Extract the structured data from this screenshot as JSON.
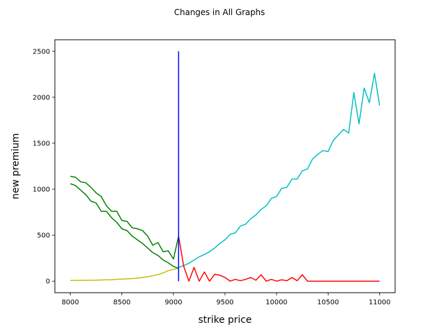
{
  "chart_data": {
    "type": "line",
    "title": "Changes in All Graphs",
    "xlabel": "strike price",
    "ylabel": "new premium",
    "xlim": [
      7850,
      11150
    ],
    "ylim": [
      -125,
      2625
    ],
    "xticks": [
      8000,
      8500,
      9000,
      9500,
      10000,
      10500,
      11000
    ],
    "yticks": [
      0,
      500,
      1000,
      1500,
      2000,
      2500
    ],
    "grid": false,
    "legend": "none",
    "series": [
      {
        "color": "#00bfbf",
        "x": [
          9050,
          9100,
          9150,
          9200,
          9250,
          9300,
          9350,
          9400,
          9450,
          9500,
          9550,
          9600,
          9650,
          9700,
          9750,
          9800,
          9850,
          9900,
          9950,
          10000,
          10050,
          10100,
          10150,
          10200,
          10250,
          10300,
          10350,
          10400,
          10450,
          10500,
          10550,
          10600,
          10650,
          10700,
          10750,
          10800,
          10850,
          10900,
          10950,
          11000
        ],
        "values": [
          150,
          170,
          195,
          230,
          265,
          290,
          320,
          360,
          410,
          450,
          510,
          525,
          600,
          620,
          680,
          720,
          780,
          820,
          900,
          920,
          1010,
          1020,
          1110,
          1110,
          1200,
          1220,
          1330,
          1380,
          1420,
          1410,
          1530,
          1590,
          1650,
          1610,
          2050,
          1710,
          2100,
          1940,
          2260,
          1910
        ]
      },
      {
        "color": "#bfbf00",
        "x": [
          8000,
          8050,
          8100,
          8150,
          8200,
          8250,
          8300,
          8350,
          8400,
          8450,
          8500,
          8550,
          8600,
          8650,
          8700,
          8750,
          8800,
          8850,
          8900,
          8950,
          9000,
          9050
        ],
        "values": [
          8,
          8,
          9,
          10,
          10,
          11,
          13,
          15,
          16,
          20,
          22,
          25,
          28,
          32,
          40,
          48,
          60,
          72,
          90,
          115,
          128,
          140
        ]
      },
      {
        "color": "#008000",
        "x": [
          8000,
          8050,
          8100,
          8150,
          8200,
          8250,
          8300,
          8350,
          8400,
          8450,
          8500,
          8550,
          8600,
          8650,
          8700,
          8750,
          8800,
          8850,
          8900,
          8950,
          9000,
          9050
        ],
        "values": [
          1140,
          1130,
          1080,
          1070,
          1020,
          960,
          920,
          820,
          760,
          760,
          660,
          650,
          580,
          570,
          550,
          490,
          390,
          420,
          320,
          330,
          240,
          490
        ]
      },
      {
        "color": "#008000",
        "x": [
          8000,
          8050,
          8100,
          8150,
          8200,
          8250,
          8300,
          8350,
          8400,
          8450,
          8500,
          8550,
          8600,
          8650,
          8700,
          8750,
          8800,
          8850,
          8900,
          8950,
          9000,
          9050
        ],
        "values": [
          1060,
          1040,
          990,
          940,
          870,
          850,
          760,
          760,
          690,
          640,
          570,
          550,
          490,
          450,
          410,
          360,
          310,
          280,
          230,
          200,
          160,
          140
        ]
      },
      {
        "color": "#ff0000",
        "x": [
          9050,
          9100,
          9150,
          9200,
          9250,
          9300,
          9350,
          9400,
          9450,
          9500,
          9550,
          9600,
          9650,
          9700,
          9750,
          9800,
          9850,
          9900,
          9950,
          10000,
          10050,
          10100,
          10150,
          10200,
          10250,
          10300,
          10350,
          10400,
          10450,
          10500,
          10550,
          10600,
          10650,
          10700,
          10750,
          10800,
          10850,
          10900,
          10950,
          11000
        ],
        "values": [
          490,
          160,
          0,
          150,
          0,
          100,
          0,
          75,
          65,
          40,
          0,
          20,
          5,
          20,
          40,
          10,
          70,
          0,
          20,
          0,
          15,
          5,
          40,
          5,
          70,
          0,
          0,
          0,
          0,
          0,
          0,
          0,
          0,
          0,
          0,
          0,
          0,
          0,
          0,
          0
        ]
      },
      {
        "color": "#0000ff",
        "x": [
          9050,
          9050
        ],
        "values": [
          0,
          2500
        ]
      }
    ]
  }
}
